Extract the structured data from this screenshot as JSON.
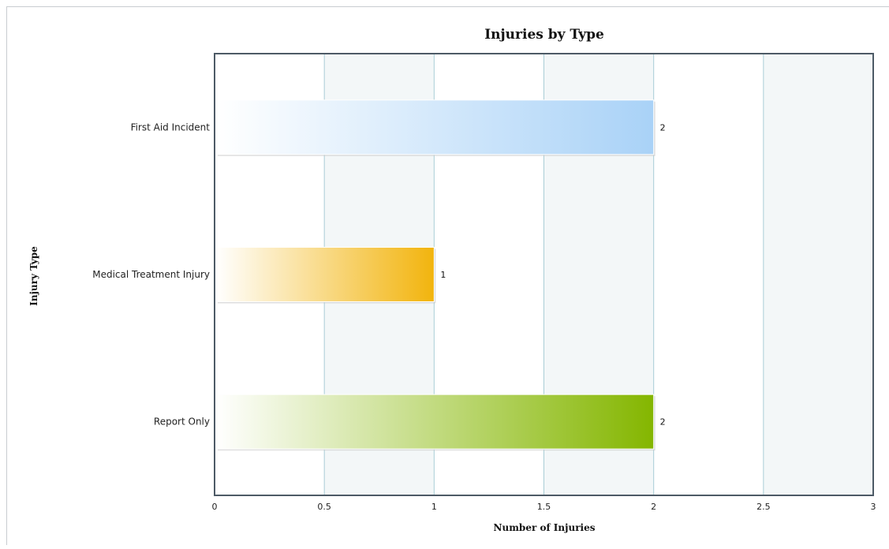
{
  "chart_data": {
    "type": "bar",
    "orientation": "horizontal",
    "title": "Injuries by Type",
    "xlabel": "Number of Injuries",
    "ylabel": "Injury Type",
    "categories": [
      "First Aid Incident",
      "Medical Treatment Injury",
      "Report Only"
    ],
    "values": [
      2,
      1,
      2
    ],
    "data_labels": [
      "2",
      "1",
      "2"
    ],
    "xlim": [
      0,
      3
    ],
    "x_ticks": [
      0,
      0.5,
      1,
      1.5,
      2,
      2.5,
      3
    ],
    "x_tick_labels": [
      "0",
      "0.5",
      "1",
      "1.5",
      "2",
      "2.5",
      "3"
    ],
    "grid": true,
    "bar_colors": [
      "#a9d2f7",
      "#f2b40d",
      "#84b600"
    ],
    "legend": "none"
  }
}
